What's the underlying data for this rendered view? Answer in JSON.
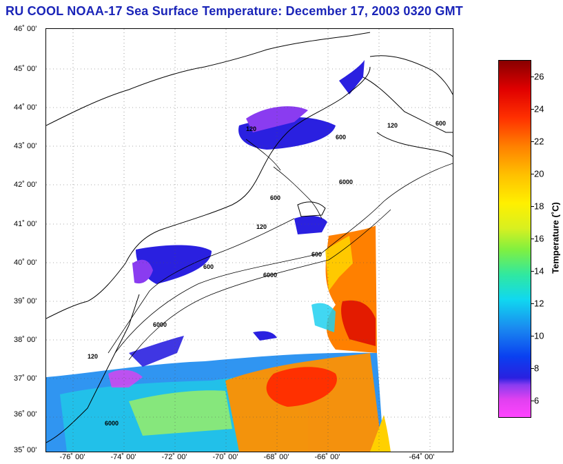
{
  "title": "RU COOL  NOAA-17  Sea Surface Temperature:  December 17, 2003 0320 GMT",
  "lat_labels": [
    "46˚ 00'",
    "45˚ 00'",
    "44˚ 00'",
    "43˚ 00'",
    "42˚ 00'",
    "41˚ 00'",
    "40˚ 00'",
    "39˚ 00'",
    "38˚ 00'",
    "37˚ 00'",
    "36˚ 00'",
    "35˚ 00'"
  ],
  "lon_labels": [
    "-76˚ 00'",
    "-74˚ 00'",
    "-72˚ 00'",
    "-70˚ 00'",
    "-68˚ 00'",
    "-66˚ 00'",
    "-64˚ 00'"
  ],
  "colorbar": {
    "title": "Temperature (˚C)",
    "ticks": [
      "26",
      "24",
      "22",
      "20",
      "18",
      "16",
      "14",
      "12",
      "10",
      "8",
      "6"
    ],
    "range": [
      5,
      27
    ]
  },
  "isobath_labels": [
    "6000",
    "6000",
    "6000",
    "600",
    "600",
    "600",
    "600",
    "600",
    "120",
    "120",
    "120",
    "120",
    "6000"
  ],
  "colors": {
    "title": "#1a24b8",
    "cold": "#2a20e0",
    "warm": "#ff6000",
    "land": "#ffffff"
  }
}
